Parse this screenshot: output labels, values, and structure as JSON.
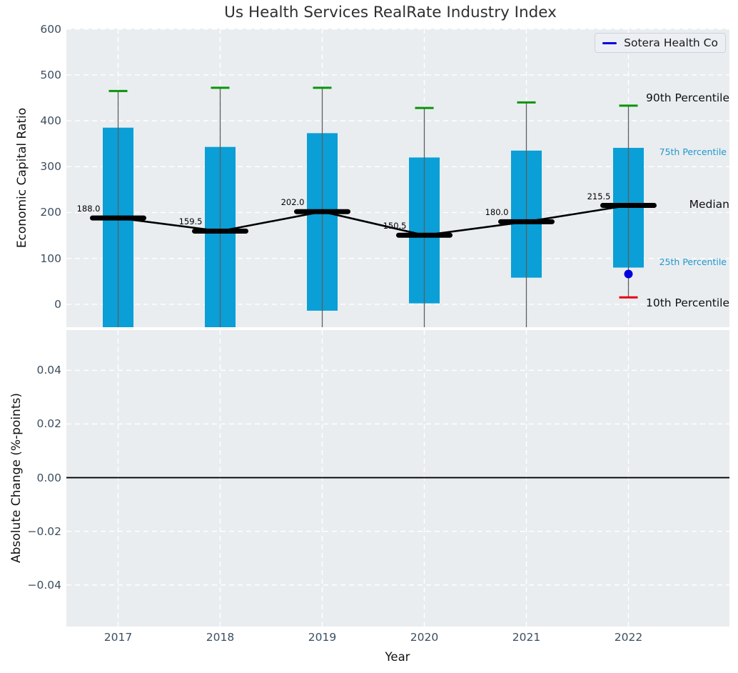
{
  "title": "Us Health Services RealRate Industry Index",
  "legend": {
    "label": "Sotera Health Co"
  },
  "colors": {
    "bar": "#0a9fd6",
    "median_line": "#000000",
    "whisker": "#5f5f5f",
    "p90_cap": "#0a940a",
    "p10_cap": "#e8000d",
    "company": "#0000dd",
    "axes_bg": "#e9edf0",
    "grid": "#ffffff",
    "tick_text": "#3c4e60",
    "percentile_text_blue": "#2397cd"
  },
  "chart_data": [
    {
      "type": "bar",
      "title": "Us Health Services RealRate Industry Index",
      "ylabel": "Economic Capital Ratio",
      "xlabel": "",
      "categories": [
        "2017",
        "2018",
        "2019",
        "2020",
        "2021",
        "2022"
      ],
      "ytick_labels": [
        "0",
        "100",
        "200",
        "300",
        "400",
        "500",
        "600"
      ],
      "ytick_values": [
        0,
        100,
        200,
        300,
        400,
        500,
        600
      ],
      "ylim": [
        -50,
        601
      ],
      "grid": true,
      "legend_position": "upper right",
      "series": [
        {
          "name": "90th Percentile",
          "role": "p90",
          "values": [
            465,
            472,
            472,
            428,
            440,
            433
          ]
        },
        {
          "name": "75th Percentile",
          "role": "p75",
          "values": [
            385,
            343,
            373,
            320,
            335,
            341
          ]
        },
        {
          "name": "Median",
          "role": "median",
          "values": [
            188.0,
            159.5,
            202.0,
            150.5,
            180.0,
            215.5
          ]
        },
        {
          "name": "25th Percentile",
          "role": "p25",
          "values": [
            null,
            null,
            -14,
            2,
            58,
            80
          ]
        },
        {
          "name": "10th Percentile",
          "role": "p10",
          "values": [
            null,
            null,
            null,
            null,
            null,
            15
          ]
        }
      ],
      "median_labels": [
        "188.0",
        "159.5",
        "202.0",
        "150.5",
        "180.0",
        "215.5"
      ],
      "company_point": {
        "name": "Sotera Health Co",
        "category": "2022",
        "value": 66
      },
      "annotations": {
        "p90": "90th Percentile",
        "p75": "75th Percentile",
        "median": "Median",
        "p25": "25th Percentile",
        "p10": "10th Percentile"
      }
    },
    {
      "type": "line",
      "ylabel": "Absolute Change (%-points)",
      "xlabel": "Year",
      "categories": [
        "2017",
        "2018",
        "2019",
        "2020",
        "2021",
        "2022"
      ],
      "ytick_labels": [
        "0.04",
        "0.02",
        "0.00",
        "−0.02",
        "−0.04"
      ],
      "ytick_values": [
        0.04,
        0.02,
        0,
        -0.02,
        -0.04
      ],
      "ylim": [
        -0.0555,
        0.055
      ],
      "zero_line_value": 0,
      "series": [],
      "grid": true
    }
  ]
}
